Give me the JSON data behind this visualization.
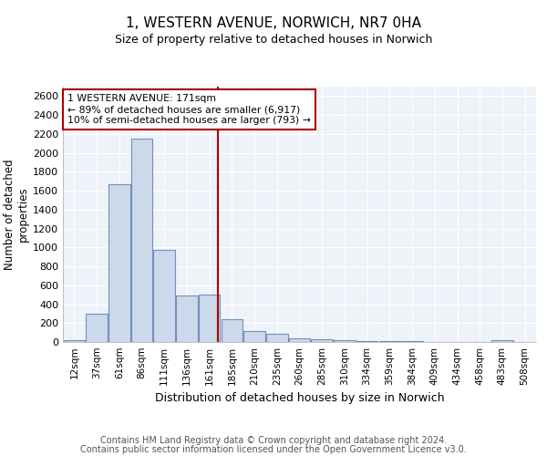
{
  "title": "1, WESTERN AVENUE, NORWICH, NR7 0HA",
  "subtitle": "Size of property relative to detached houses in Norwich",
  "xlabel": "Distribution of detached houses by size in Norwich",
  "ylabel": "Number of detached\nproperties",
  "bar_labels": [
    "12sqm",
    "37sqm",
    "61sqm",
    "86sqm",
    "111sqm",
    "136sqm",
    "161sqm",
    "185sqm",
    "210sqm",
    "235sqm",
    "260sqm",
    "285sqm",
    "310sqm",
    "334sqm",
    "359sqm",
    "384sqm",
    "409sqm",
    "434sqm",
    "458sqm",
    "483sqm",
    "508sqm"
  ],
  "bar_values": [
    20,
    295,
    1670,
    2150,
    970,
    490,
    500,
    240,
    120,
    90,
    35,
    25,
    15,
    12,
    8,
    6,
    4,
    3,
    0,
    20,
    0
  ],
  "bar_color": "#ccd9ea",
  "bar_edge_color": "#7090bb",
  "vline_color": "#aa0000",
  "annotation_text": "1 WESTERN AVENUE: 171sqm\n← 89% of detached houses are smaller (6,917)\n10% of semi-detached houses are larger (793) →",
  "annotation_box_color": "#ffffff",
  "annotation_box_edge": "#aa0000",
  "ylim": [
    0,
    2700
  ],
  "yticks": [
    0,
    200,
    400,
    600,
    800,
    1000,
    1200,
    1400,
    1600,
    1800,
    2000,
    2200,
    2400,
    2600
  ],
  "footer_line1": "Contains HM Land Registry data © Crown copyright and database right 2024.",
  "footer_line2": "Contains public sector information licensed under the Open Government Licence v3.0.",
  "plot_bg_color": "#eef2f9",
  "grid_color": "#ffffff"
}
